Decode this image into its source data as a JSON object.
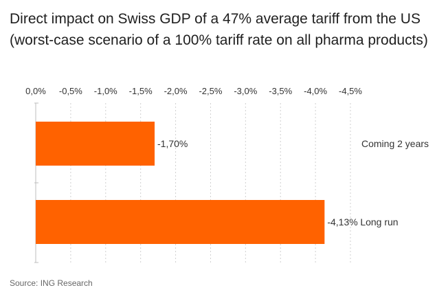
{
  "chart_data": {
    "type": "bar",
    "orientation": "horizontal",
    "title": "Direct impact on Swiss GDP of a 47% average tariff from the US (worst-case scenario of a 100% tariff rate on all pharma products)",
    "categories": [
      "Coming 2 years",
      "Long run"
    ],
    "values": [
      -1.7,
      -4.13
    ],
    "value_labels": [
      "-1,70%",
      "-4,13%"
    ],
    "xlim": [
      0,
      -4.5
    ],
    "xticks": [
      0,
      -0.5,
      -1.0,
      -1.5,
      -2.0,
      -2.5,
      -3.0,
      -3.5,
      -4.0,
      -4.5
    ],
    "xtick_labels": [
      "0,0%",
      "-0,5%",
      "-1,0%",
      "-1,5%",
      "-2,0%",
      "-2,5%",
      "-3,0%",
      "-3,5%",
      "-4,0%",
      "-4,5%"
    ],
    "xaxis_position": "top",
    "grid": "vertical dashed",
    "bar_color": "#ff6200",
    "xlabel": "",
    "ylabel": ""
  },
  "source": "Source: ING Research"
}
